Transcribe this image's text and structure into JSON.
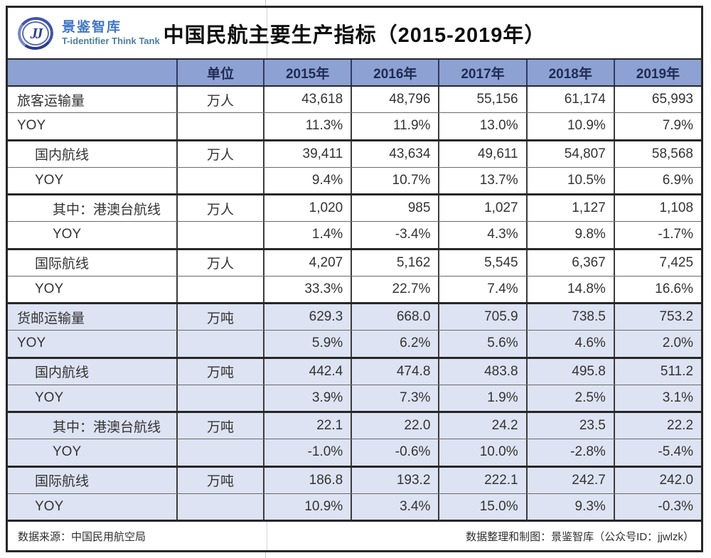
{
  "brand": {
    "initials": "JJ",
    "name_cn": "景鉴智库",
    "name_en": "T-identifier Think Tank"
  },
  "title": "中国民航主要生产指标（2015-2019年）",
  "table": {
    "corner_label": "",
    "unit_header": "单位",
    "year_headers": [
      "2015年",
      "2016年",
      "2017年",
      "2018年",
      "2019年"
    ],
    "rows": [
      {
        "label": "旅客运输量",
        "indent": 0,
        "unit": "万人",
        "section": "passenger",
        "values": [
          "43,618",
          "48,796",
          "55,156",
          "61,174",
          "65,993"
        ]
      },
      {
        "label": "YOY",
        "indent": 0,
        "unit": "",
        "section": "passenger",
        "values": [
          "11.3%",
          "11.9%",
          "13.0%",
          "10.9%",
          "7.9%"
        ]
      },
      {
        "label": "国内航线",
        "indent": 1,
        "unit": "万人",
        "section": "passenger",
        "values": [
          "39,411",
          "43,634",
          "49,611",
          "54,807",
          "58,568"
        ]
      },
      {
        "label": "YOY",
        "indent": 1,
        "unit": "",
        "section": "passenger",
        "values": [
          "9.4%",
          "10.7%",
          "13.7%",
          "10.5%",
          "6.9%"
        ]
      },
      {
        "label": "其中：港澳台航线",
        "indent": 2,
        "unit": "万人",
        "section": "passenger",
        "values": [
          "1,020",
          "985",
          "1,027",
          "1,127",
          "1,108"
        ]
      },
      {
        "label": "YOY",
        "indent": 2,
        "unit": "",
        "section": "passenger",
        "values": [
          "1.4%",
          "-3.4%",
          "4.3%",
          "9.8%",
          "-1.7%"
        ]
      },
      {
        "label": "国际航线",
        "indent": 1,
        "unit": "万人",
        "section": "passenger",
        "values": [
          "4,207",
          "5,162",
          "5,545",
          "6,367",
          "7,425"
        ]
      },
      {
        "label": "YOY",
        "indent": 1,
        "unit": "",
        "section": "passenger",
        "values": [
          "33.3%",
          "22.7%",
          "7.4%",
          "14.8%",
          "16.6%"
        ]
      },
      {
        "label": "货邮运输量",
        "indent": 0,
        "unit": "万吨",
        "section": "cargo",
        "values": [
          "629.3",
          "668.0",
          "705.9",
          "738.5",
          "753.2"
        ]
      },
      {
        "label": "YOY",
        "indent": 0,
        "unit": "",
        "section": "cargo",
        "values": [
          "5.9%",
          "6.2%",
          "5.6%",
          "4.6%",
          "2.0%"
        ]
      },
      {
        "label": "国内航线",
        "indent": 1,
        "unit": "万吨",
        "section": "cargo",
        "values": [
          "442.4",
          "474.8",
          "483.8",
          "495.8",
          "511.2"
        ]
      },
      {
        "label": "YOY",
        "indent": 1,
        "unit": "",
        "section": "cargo",
        "values": [
          "3.9%",
          "7.3%",
          "1.9%",
          "2.5%",
          "3.1%"
        ]
      },
      {
        "label": "其中：港澳台航线",
        "indent": 2,
        "unit": "万吨",
        "section": "cargo",
        "values": [
          "22.1",
          "22.0",
          "24.2",
          "23.5",
          "22.2"
        ]
      },
      {
        "label": "YOY",
        "indent": 2,
        "unit": "",
        "section": "cargo",
        "values": [
          "-1.0%",
          "-0.6%",
          "10.0%",
          "-2.8%",
          "-5.4%"
        ]
      },
      {
        "label": "国际航线",
        "indent": 1,
        "unit": "万吨",
        "section": "cargo",
        "values": [
          "186.8",
          "193.2",
          "222.1",
          "242.7",
          "242.0"
        ]
      },
      {
        "label": "YOY",
        "indent": 1,
        "unit": "",
        "section": "cargo",
        "values": [
          "10.9%",
          "3.4%",
          "15.0%",
          "9.3%",
          "-0.3%"
        ]
      }
    ]
  },
  "footer": {
    "source": "数据来源：中国民用航空局",
    "credit": "数据整理和制图：景鉴智库（公众号ID：jjwlzk）"
  },
  "colors": {
    "header_bg": "#8da1d2",
    "header_text": "#1f2a56",
    "cargo_bg": "#dde3f2",
    "accent_navy": "#2e3f8f",
    "brand_blue": "#4177c4",
    "brand_teal": "#4b7f9d"
  }
}
